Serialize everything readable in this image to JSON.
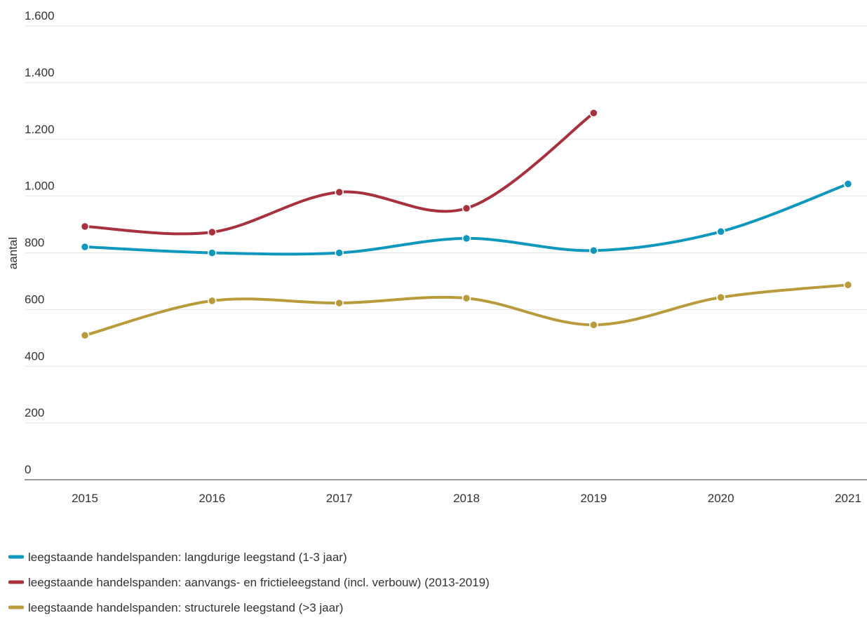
{
  "chart_data": {
    "type": "line",
    "y_label": "aantal",
    "categories": [
      "2015",
      "2016",
      "2017",
      "2018",
      "2019",
      "2020",
      "2021"
    ],
    "series": [
      {
        "name": "leegstaande handelspanden: langdurige leegstand (1-3 jaar)",
        "color": "#0f98bd",
        "values": [
          821,
          800,
          800,
          851,
          808,
          875,
          1043
        ]
      },
      {
        "name": "leegstaande handelspanden: aanvangs- en frictieleegstand (incl. verbouw) (2013-2019)",
        "color": "#a8313e",
        "values": [
          893,
          873,
          1014,
          957,
          1293,
          null,
          null
        ]
      },
      {
        "name": "leegstaande handelspanden: structurele leegstand (>3 jaar)",
        "color": "#b99b3b",
        "values": [
          509,
          631,
          623,
          640,
          546,
          643,
          687
        ]
      }
    ],
    "ylim": [
      0,
      1600
    ],
    "yticks": [
      0,
      200,
      400,
      600,
      800,
      {
        "value": 1000,
        "label": "1.000"
      },
      {
        "value": 1200,
        "label": "1.200"
      },
      {
        "value": 1400,
        "label": "1.400"
      },
      {
        "value": 1600,
        "label": "1.600"
      }
    ],
    "grid": true,
    "legend": "bottom"
  }
}
